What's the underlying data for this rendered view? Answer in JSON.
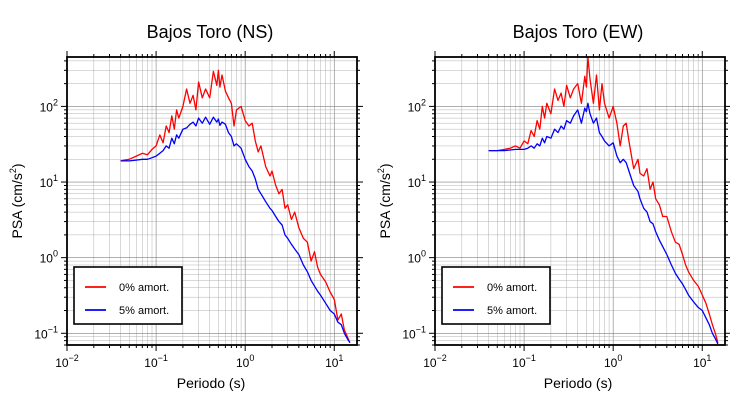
{
  "chart_data": [
    {
      "type": "line",
      "title": "Bajos Toro (NS)",
      "xlabel": "Periodo (s)",
      "ylabel_base": "PSA (cm/s",
      "ylabel_sup": "2",
      "ylabel_close": ")",
      "x_scale": "log",
      "y_scale": "log",
      "xlim": [
        0.01,
        18
      ],
      "ylim": [
        0.07,
        450
      ],
      "grid": true,
      "legend_position": "bottom-left",
      "x_ticks": [
        {
          "value": 0.01,
          "base": "10",
          "exp": "−2"
        },
        {
          "value": 0.1,
          "base": "10",
          "exp": "−1"
        },
        {
          "value": 1,
          "base": "10",
          "exp": "0"
        },
        {
          "value": 10,
          "base": "10",
          "exp": "1"
        }
      ],
      "y_ticks": [
        {
          "value": 0.1,
          "base": "10",
          "exp": "−1"
        },
        {
          "value": 1,
          "base": "10",
          "exp": "0"
        },
        {
          "value": 10,
          "base": "10",
          "exp": "1"
        },
        {
          "value": 100,
          "base": "10",
          "exp": "2"
        }
      ],
      "series": [
        {
          "name": "0% amort.",
          "color": "#ff0000",
          "x": [
            0.04,
            0.05,
            0.06,
            0.07,
            0.08,
            0.09,
            0.1,
            0.11,
            0.12,
            0.13,
            0.14,
            0.15,
            0.16,
            0.17,
            0.18,
            0.2,
            0.22,
            0.24,
            0.26,
            0.28,
            0.3,
            0.33,
            0.36,
            0.4,
            0.44,
            0.48,
            0.5,
            0.52,
            0.55,
            0.6,
            0.65,
            0.7,
            0.75,
            0.8,
            0.9,
            1.0,
            1.1,
            1.2,
            1.3,
            1.4,
            1.5,
            1.7,
            1.9,
            2.0,
            2.2,
            2.4,
            2.6,
            2.8,
            3.0,
            3.3,
            3.6,
            4.0,
            4.5,
            5.0,
            5.5,
            6.0,
            6.5,
            7.0,
            8.0,
            9.0,
            10.0,
            11.0,
            12.0,
            13.0,
            14.0,
            15.0
          ],
          "y": [
            19,
            20,
            22,
            24,
            23,
            27,
            30,
            42,
            33,
            55,
            45,
            75,
            50,
            90,
            70,
            100,
            170,
            110,
            140,
            90,
            210,
            130,
            170,
            130,
            290,
            190,
            300,
            180,
            260,
            160,
            130,
            110,
            55,
            90,
            100,
            65,
            55,
            60,
            35,
            25,
            30,
            16,
            12,
            14,
            9,
            7,
            8,
            4.5,
            5,
            3.2,
            4,
            2.5,
            1.8,
            1.6,
            0.9,
            1.2,
            0.75,
            0.6,
            0.48,
            0.35,
            0.28,
            0.15,
            0.18,
            0.11,
            0.09,
            0.075
          ]
        },
        {
          "name": "5% amort.",
          "color": "#0000ff",
          "x": [
            0.04,
            0.05,
            0.06,
            0.07,
            0.08,
            0.09,
            0.1,
            0.11,
            0.12,
            0.13,
            0.14,
            0.15,
            0.16,
            0.17,
            0.18,
            0.2,
            0.22,
            0.24,
            0.26,
            0.28,
            0.3,
            0.33,
            0.36,
            0.4,
            0.44,
            0.48,
            0.5,
            0.52,
            0.55,
            0.6,
            0.65,
            0.7,
            0.75,
            0.8,
            0.9,
            1.0,
            1.1,
            1.2,
            1.3,
            1.4,
            1.5,
            1.7,
            1.9,
            2.0,
            2.2,
            2.4,
            2.6,
            2.8,
            3.0,
            3.3,
            3.6,
            4.0,
            4.5,
            5.0,
            5.5,
            6.0,
            6.5,
            7.0,
            8.0,
            9.0,
            10.0,
            11.0,
            12.0,
            13.0,
            14.0,
            15.0
          ],
          "y": [
            19,
            19,
            19.5,
            20,
            20,
            21,
            22,
            24,
            26,
            30,
            28,
            38,
            32,
            42,
            38,
            50,
            52,
            58,
            62,
            55,
            70,
            60,
            72,
            58,
            72,
            62,
            68,
            56,
            62,
            58,
            45,
            40,
            30,
            32,
            28,
            20,
            16,
            14,
            11,
            8,
            7,
            5.5,
            4.5,
            4.2,
            3.5,
            3,
            2.7,
            2,
            1.8,
            1.5,
            1.3,
            1.1,
            0.8,
            0.65,
            0.5,
            0.42,
            0.36,
            0.32,
            0.25,
            0.2,
            0.18,
            0.14,
            0.13,
            0.1,
            0.085,
            0.075
          ]
        }
      ]
    },
    {
      "type": "line",
      "title": "Bajos Toro (EW)",
      "xlabel": "Periodo (s)",
      "ylabel_base": "PSA (cm/s",
      "ylabel_sup": "2",
      "ylabel_close": ")",
      "x_scale": "log",
      "y_scale": "log",
      "xlim": [
        0.01,
        18
      ],
      "ylim": [
        0.07,
        450
      ],
      "grid": true,
      "legend_position": "bottom-left",
      "x_ticks": [
        {
          "value": 0.01,
          "base": "10",
          "exp": "−2"
        },
        {
          "value": 0.1,
          "base": "10",
          "exp": "−1"
        },
        {
          "value": 1,
          "base": "10",
          "exp": "0"
        },
        {
          "value": 10,
          "base": "10",
          "exp": "1"
        }
      ],
      "y_ticks": [
        {
          "value": 0.1,
          "base": "10",
          "exp": "−1"
        },
        {
          "value": 1,
          "base": "10",
          "exp": "0"
        },
        {
          "value": 10,
          "base": "10",
          "exp": "1"
        },
        {
          "value": 100,
          "base": "10",
          "exp": "2"
        }
      ],
      "series": [
        {
          "name": "0% amort.",
          "color": "#ff0000",
          "x": [
            0.04,
            0.05,
            0.06,
            0.07,
            0.08,
            0.09,
            0.1,
            0.11,
            0.12,
            0.13,
            0.14,
            0.15,
            0.16,
            0.17,
            0.18,
            0.2,
            0.22,
            0.24,
            0.26,
            0.28,
            0.3,
            0.33,
            0.36,
            0.4,
            0.44,
            0.48,
            0.5,
            0.52,
            0.55,
            0.6,
            0.65,
            0.7,
            0.75,
            0.8,
            0.9,
            1.0,
            1.1,
            1.2,
            1.3,
            1.4,
            1.5,
            1.7,
            1.9,
            2.0,
            2.2,
            2.4,
            2.6,
            2.8,
            3.0,
            3.3,
            3.6,
            4.0,
            4.5,
            5.0,
            5.5,
            6.0,
            6.5,
            7.0,
            8.0,
            9.0,
            10.0,
            11.0,
            12.0,
            13.0,
            14.0,
            15.0
          ],
          "y": [
            26,
            26,
            27,
            28,
            30,
            28,
            35,
            32,
            48,
            40,
            65,
            50,
            100,
            70,
            110,
            80,
            170,
            120,
            150,
            100,
            190,
            130,
            170,
            200,
            110,
            250,
            180,
            450,
            230,
            110,
            260,
            90,
            200,
            110,
            70,
            100,
            60,
            30,
            55,
            60,
            35,
            15,
            20,
            13,
            12,
            15,
            8,
            10,
            6,
            5,
            3.5,
            3.5,
            2.2,
            1.6,
            1.5,
            1.1,
            0.8,
            0.65,
            0.5,
            0.42,
            0.32,
            0.25,
            0.18,
            0.13,
            0.1,
            0.075
          ]
        },
        {
          "name": "5% amort.",
          "color": "#0000ff",
          "x": [
            0.04,
            0.05,
            0.06,
            0.07,
            0.08,
            0.09,
            0.1,
            0.11,
            0.12,
            0.13,
            0.14,
            0.15,
            0.16,
            0.17,
            0.18,
            0.2,
            0.22,
            0.24,
            0.26,
            0.28,
            0.3,
            0.33,
            0.36,
            0.4,
            0.44,
            0.48,
            0.5,
            0.52,
            0.55,
            0.6,
            0.65,
            0.7,
            0.75,
            0.8,
            0.9,
            1.0,
            1.1,
            1.2,
            1.3,
            1.4,
            1.5,
            1.7,
            1.9,
            2.0,
            2.2,
            2.4,
            2.6,
            2.8,
            3.0,
            3.3,
            3.6,
            4.0,
            4.5,
            5.0,
            5.5,
            6.0,
            6.5,
            7.0,
            8.0,
            9.0,
            10.0,
            11.0,
            12.0,
            13.0,
            14.0,
            15.0
          ],
          "y": [
            26,
            26,
            26,
            26.5,
            27,
            27,
            27,
            28,
            30,
            28,
            32,
            30,
            38,
            33,
            40,
            38,
            50,
            45,
            55,
            50,
            65,
            60,
            75,
            90,
            60,
            95,
            85,
            110,
            80,
            60,
            70,
            45,
            40,
            35,
            30,
            33,
            22,
            18,
            20,
            18,
            14,
            9,
            7.5,
            6,
            4.5,
            4,
            3,
            2.8,
            2.2,
            1.7,
            1.4,
            1.1,
            0.8,
            0.62,
            0.52,
            0.45,
            0.38,
            0.32,
            0.26,
            0.22,
            0.2,
            0.16,
            0.13,
            0.1,
            0.085,
            0.072
          ]
        }
      ]
    }
  ]
}
